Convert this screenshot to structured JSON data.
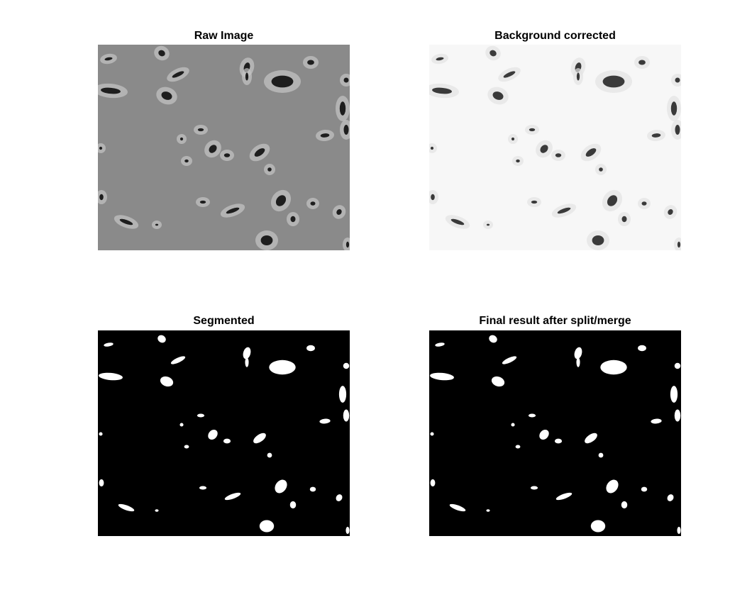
{
  "panels": {
    "raw": {
      "title": "Raw Image",
      "colors": {
        "background": "#8a8a8a",
        "cell": "#1e1e1e",
        "halo": "#c4c4c4"
      }
    },
    "background_corrected": {
      "title": "Background corrected",
      "colors": {
        "background": "#f7f7f7",
        "cell": "#3a3a3a",
        "halo": "#e2e2e2"
      }
    },
    "segmented": {
      "title": "Segmented",
      "colors": {
        "background": "#000000",
        "cell": "#ffffff"
      }
    },
    "final": {
      "title": "Final result after split/merge",
      "colors": {
        "background": "#000000",
        "cell": "#ffffff"
      }
    }
  }
}
